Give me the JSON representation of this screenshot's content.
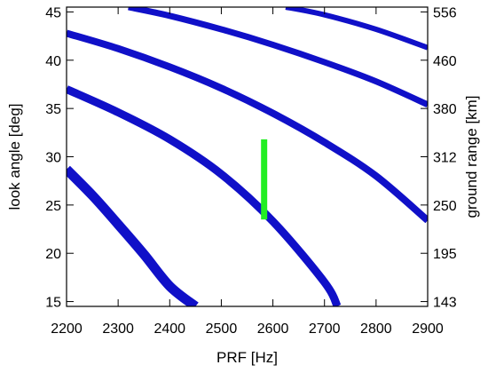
{
  "chart_data": {
    "type": "line",
    "title": "",
    "xlabel": "PRF [Hz]",
    "ylabel": "look angle [deg]",
    "ylabel_right": "ground range [km]",
    "xlim": [
      2200,
      2900
    ],
    "ylim": [
      14.5,
      45.5
    ],
    "x_ticks": [
      2200,
      2300,
      2400,
      2500,
      2600,
      2700,
      2800,
      2900
    ],
    "y_ticks": [
      15,
      20,
      25,
      30,
      35,
      40,
      45
    ],
    "y_right_ticks": [
      {
        "look_angle": 15,
        "label": "143"
      },
      {
        "look_angle": 20,
        "label": "195"
      },
      {
        "look_angle": 25,
        "label": "250"
      },
      {
        "look_angle": 30,
        "label": "312"
      },
      {
        "look_angle": 35,
        "label": "380"
      },
      {
        "look_angle": 40,
        "label": "460"
      },
      {
        "look_angle": 45,
        "label": "556"
      }
    ],
    "grid": false,
    "series": [
      {
        "color": "#1010c8",
        "x": [
          2200,
          2250,
          2300,
          2350,
          2400,
          2450
        ],
        "y": [
          28.7,
          26.0,
          23.0,
          19.9,
          16.6,
          14.5
        ]
      },
      {
        "color": "#1010c8",
        "x": [
          2200,
          2300,
          2400,
          2500,
          2600,
          2700,
          2725
        ],
        "y": [
          37.0,
          34.6,
          31.8,
          28.2,
          23.3,
          17.0,
          14.5
        ]
      },
      {
        "color": "#1010c8",
        "x": [
          2200,
          2300,
          2400,
          2500,
          2600,
          2700,
          2800,
          2900
        ],
        "y": [
          42.8,
          41.2,
          39.3,
          37.1,
          34.5,
          31.5,
          28.0,
          23.4
        ]
      },
      {
        "color": "#1010c8",
        "x": [
          2320,
          2400,
          2500,
          2600,
          2700,
          2800,
          2900
        ],
        "y": [
          45.5,
          44.6,
          43.2,
          41.6,
          39.8,
          37.8,
          35.4
        ]
      },
      {
        "color": "#1010c8",
        "x": [
          2625,
          2700,
          2800,
          2900
        ],
        "y": [
          45.5,
          44.7,
          43.2,
          41.3
        ]
      }
    ],
    "marker": {
      "color": "#22ee22",
      "x": 2583,
      "y": [
        23.5,
        31.8
      ]
    }
  }
}
